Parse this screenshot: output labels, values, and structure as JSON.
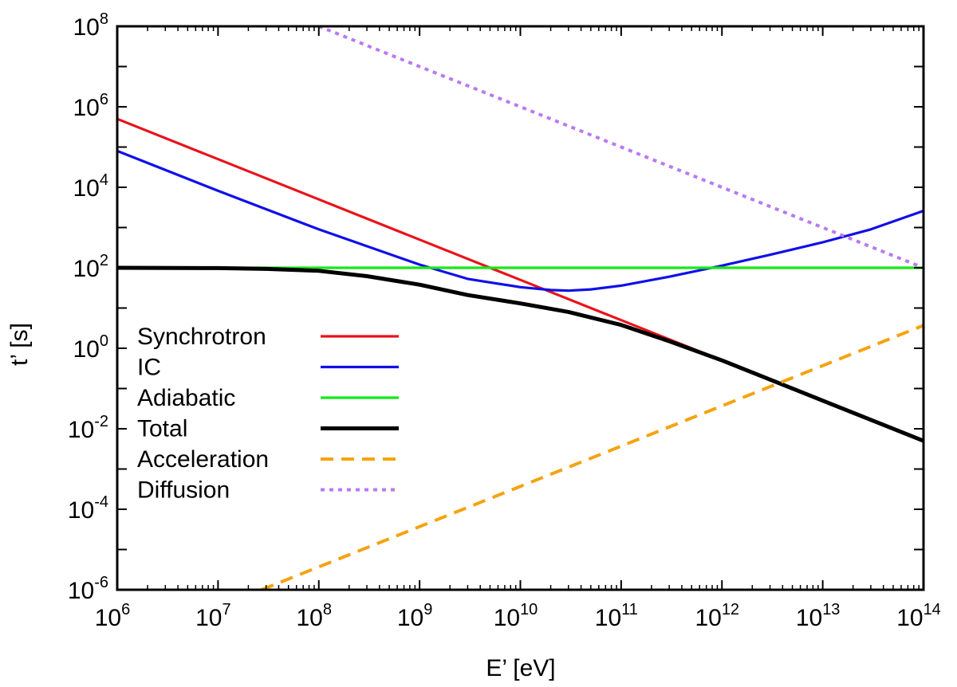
{
  "chart_data": {
    "type": "line",
    "title": "",
    "xlabel": "E’ [eV]",
    "ylabel": "t’ [s]",
    "x_scale": "log",
    "y_scale": "log",
    "xlim": [
      1000000.0,
      100000000000000.0
    ],
    "ylim": [
      1e-06,
      100000000.0
    ],
    "x_ticks": [
      {
        "base": "10",
        "exp": "6"
      },
      {
        "base": "10",
        "exp": "7"
      },
      {
        "base": "10",
        "exp": "8"
      },
      {
        "base": "10",
        "exp": "9"
      },
      {
        "base": "10",
        "exp": "10"
      },
      {
        "base": "10",
        "exp": "11"
      },
      {
        "base": "10",
        "exp": "12"
      },
      {
        "base": "10",
        "exp": "13"
      },
      {
        "base": "10",
        "exp": "14"
      }
    ],
    "y_ticks": [
      {
        "base": "10",
        "exp": "-6"
      },
      {
        "base": "10",
        "exp": "-4"
      },
      {
        "base": "10",
        "exp": "-2"
      },
      {
        "base": "10",
        "exp": "0"
      },
      {
        "base": "10",
        "exp": "2"
      },
      {
        "base": "10",
        "exp": "4"
      },
      {
        "base": "10",
        "exp": "6"
      },
      {
        "base": "10",
        "exp": "8"
      }
    ],
    "grid": false,
    "legend_position": "left",
    "series": [
      {
        "name": "Synchrotron",
        "color": "#e8141b",
        "style": "solid",
        "x": [
          1000000.0,
          10000000.0,
          100000000.0,
          1000000000.0,
          10000000000.0,
          100000000000.0,
          1000000000000.0,
          10000000000000.0,
          100000000000000.0
        ],
        "y": [
          500000,
          50000,
          5000,
          500,
          50,
          5,
          0.5,
          0.05,
          0.005
        ]
      },
      {
        "name": "IC",
        "color": "#1010e8",
        "style": "solid",
        "x": [
          1000000.0,
          10000000.0,
          100000000.0,
          1000000000.0,
          3000000000.0,
          10000000000.0,
          20000000000.0,
          30000000000.0,
          50000000000.0,
          100000000000.0,
          300000000000.0,
          1000000000000.0,
          3000000000000.0,
          10000000000000.0,
          30000000000000.0,
          100000000000000.0
        ],
        "y": [
          80000,
          8200,
          900,
          120,
          53,
          33,
          28,
          27,
          29,
          36,
          60,
          113,
          210,
          430,
          900,
          2600
        ]
      },
      {
        "name": "Adiabatic",
        "color": "#16e816",
        "style": "solid",
        "x": [
          1000000.0,
          100000000000000.0
        ],
        "y": [
          100,
          100
        ]
      },
      {
        "name": "Total",
        "color": "#000000",
        "style": "solid",
        "x": [
          1000000.0,
          10000000.0,
          30000000.0,
          100000000.0,
          300000000.0,
          1000000000.0,
          3000000000.0,
          10000000000.0,
          30000000000.0,
          100000000000.0,
          300000000000.0,
          1000000000000.0,
          10000000000000.0,
          100000000000000.0
        ],
        "y": [
          100,
          98,
          94,
          84,
          62,
          38,
          21,
          13,
          8,
          3.8,
          1.5,
          0.5,
          0.05,
          0.005
        ]
      },
      {
        "name": "Acceleration",
        "color": "#f5a30f",
        "style": "dashed",
        "x": [
          27000000.0,
          100000000000000.0
        ],
        "y": [
          1e-06,
          3.7
        ]
      },
      {
        "name": "Diffusion",
        "color": "#b87af0",
        "style": "dotted",
        "x": [
          100000000.0,
          100000000000000.0
        ],
        "y": [
          100000000.0,
          100
        ]
      }
    ]
  }
}
